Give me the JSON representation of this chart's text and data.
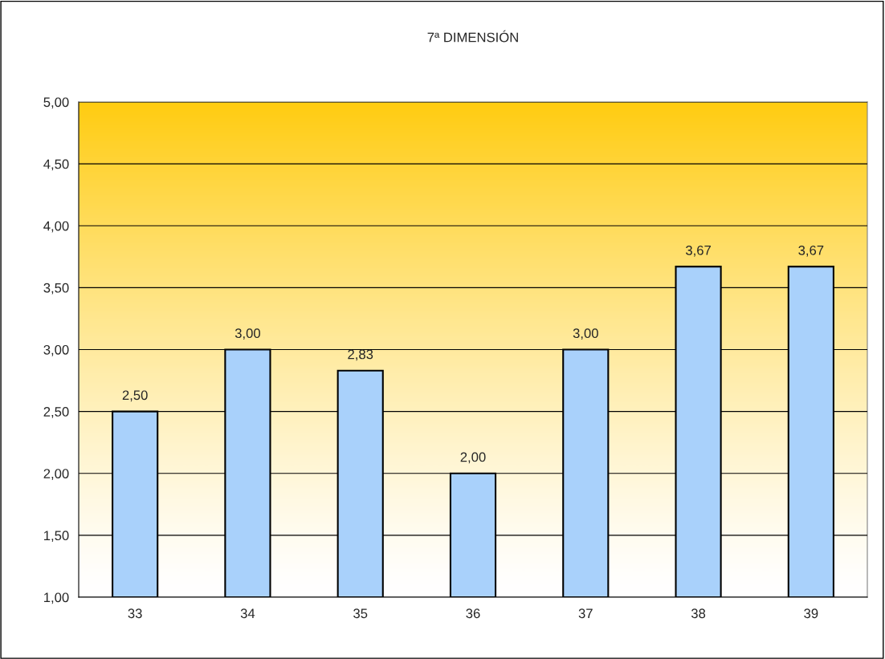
{
  "chart_data": {
    "type": "bar",
    "title": "7ª DIMENSIÓN",
    "categories": [
      "33",
      "34",
      "35",
      "36",
      "37",
      "38",
      "39"
    ],
    "values": [
      2.5,
      3.0,
      2.83,
      2.0,
      3.0,
      3.67,
      3.67
    ],
    "value_labels": [
      "2,50",
      "3,00",
      "2,83",
      "2,00",
      "3,00",
      "3,67",
      "3,67"
    ],
    "color": "#a9d1fb",
    "ylim": [
      1,
      5
    ],
    "yticks": [
      {
        "value": 1,
        "label": "1,00"
      },
      {
        "value": 1.5,
        "label": "1,50"
      },
      {
        "value": 2,
        "label": "2,00"
      },
      {
        "value": 2.5,
        "label": "2,50"
      },
      {
        "value": 3,
        "label": "3,00"
      },
      {
        "value": 3.5,
        "label": "3,50"
      },
      {
        "value": 4,
        "label": "4,00"
      },
      {
        "value": 4.5,
        "label": "4,50"
      },
      {
        "value": 5,
        "label": "5,00"
      }
    ],
    "grid": "y",
    "legend": false
  }
}
